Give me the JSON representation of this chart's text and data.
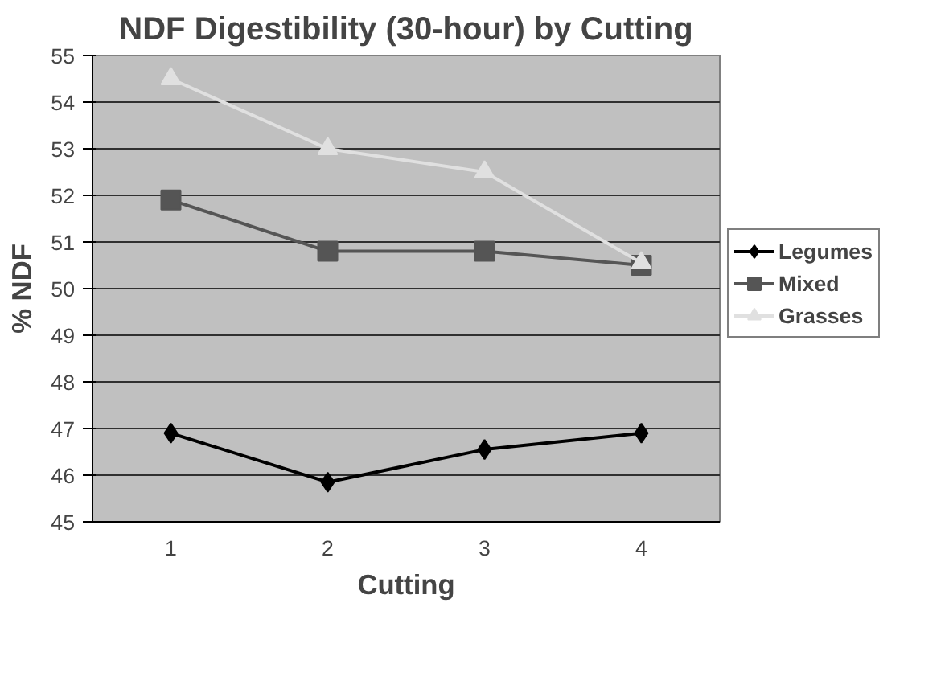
{
  "chart_data": {
    "type": "line",
    "title": "NDF Digestibility (30-hour) by Cutting",
    "xlabel": "Cutting",
    "ylabel": "% NDF",
    "categories": [
      "1",
      "2",
      "3",
      "4"
    ],
    "series": [
      {
        "name": "Legumes",
        "color": "#000000",
        "marker": "diamond",
        "values": [
          46.9,
          45.85,
          46.55,
          46.9
        ]
      },
      {
        "name": "Mixed",
        "color": "#555555",
        "marker": "square",
        "values": [
          51.9,
          50.8,
          50.8,
          50.5
        ]
      },
      {
        "name": "Grasses",
        "color": "#e0e0e0",
        "marker": "triangle",
        "values": [
          54.5,
          53.0,
          52.5,
          50.55
        ]
      }
    ],
    "ylim": [
      45,
      55
    ],
    "yticks": [
      45,
      46,
      47,
      48,
      49,
      50,
      51,
      52,
      53,
      54,
      55
    ],
    "grid": "y",
    "legend": "right",
    "line_style": "solid"
  }
}
